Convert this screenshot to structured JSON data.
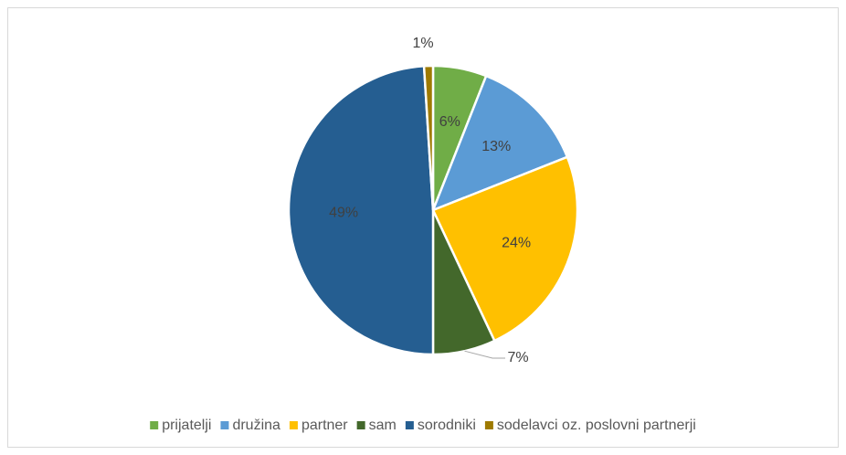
{
  "chart_data": {
    "type": "pie",
    "categories": [
      "prijatelji",
      "družina",
      "partner",
      "sam",
      "sorodniki",
      "sodelavci oz. poslovni partnerji"
    ],
    "values": [
      6,
      13,
      24,
      7,
      49,
      1
    ],
    "value_labels": [
      "6%",
      "13%",
      "24%",
      "7%",
      "49%",
      "1%"
    ],
    "colors": [
      "#70ad47",
      "#5b9bd5",
      "#ffc000",
      "#43682b",
      "#255e91",
      "#9e7a00"
    ],
    "legend": "bottom"
  }
}
